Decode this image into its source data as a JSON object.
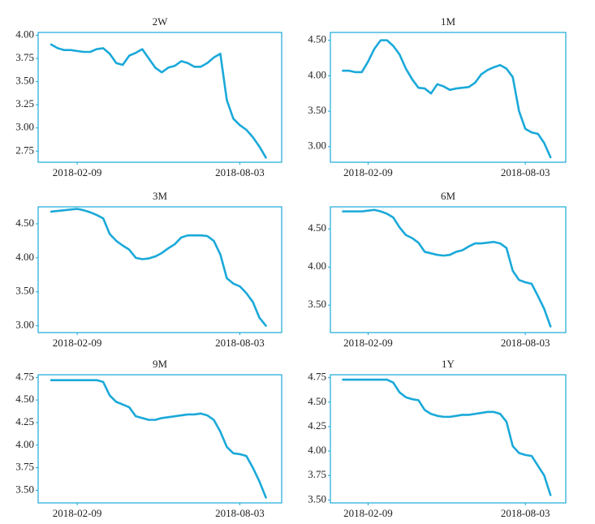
{
  "chart_data": [
    {
      "type": "line",
      "title": "2W",
      "color": "#1aa9d9",
      "x": [
        "2018-01-12",
        "2018-01-19",
        "2018-01-26",
        "2018-02-02",
        "2018-02-09",
        "2018-02-16",
        "2018-02-23",
        "2018-03-02",
        "2018-03-09",
        "2018-03-16",
        "2018-03-23",
        "2018-03-30",
        "2018-04-06",
        "2018-04-13",
        "2018-04-20",
        "2018-04-27",
        "2018-05-04",
        "2018-05-11",
        "2018-05-18",
        "2018-05-25",
        "2018-06-01",
        "2018-06-08",
        "2018-06-15",
        "2018-06-22",
        "2018-06-29",
        "2018-07-06",
        "2018-07-13",
        "2018-07-20",
        "2018-07-27",
        "2018-08-03",
        "2018-08-10",
        "2018-08-17",
        "2018-08-24",
        "2018-08-31"
      ],
      "values": [
        3.9,
        3.86,
        3.84,
        3.84,
        3.83,
        3.82,
        3.82,
        3.85,
        3.86,
        3.8,
        3.7,
        3.68,
        3.78,
        3.81,
        3.85,
        3.75,
        3.65,
        3.6,
        3.65,
        3.67,
        3.72,
        3.7,
        3.66,
        3.66,
        3.7,
        3.76,
        3.8,
        3.3,
        3.1,
        3.03,
        2.98,
        2.9,
        2.8,
        2.68
      ],
      "xlim": [
        "2017-12-29",
        "2018-09-17"
      ],
      "xticks": [
        "2018-02-09",
        "2018-08-03"
      ],
      "ylim": [
        2.63,
        4.03
      ],
      "yticks": [
        {
          "value": 2.75,
          "label": "2.75"
        },
        {
          "value": 3,
          "label": "3.00"
        },
        {
          "value": 3.25,
          "label": "3.25"
        },
        {
          "value": 3.5,
          "label": "3.50"
        },
        {
          "value": 3.75,
          "label": "3.75"
        },
        {
          "value": 4,
          "label": "4.00"
        }
      ]
    },
    {
      "type": "line",
      "title": "1M",
      "color": "#1aa9d9",
      "x": [
        "2018-01-12",
        "2018-01-19",
        "2018-01-26",
        "2018-02-02",
        "2018-02-09",
        "2018-02-16",
        "2018-02-23",
        "2018-03-02",
        "2018-03-09",
        "2018-03-16",
        "2018-03-23",
        "2018-03-30",
        "2018-04-06",
        "2018-04-13",
        "2018-04-20",
        "2018-04-27",
        "2018-05-04",
        "2018-05-11",
        "2018-05-18",
        "2018-05-25",
        "2018-06-01",
        "2018-06-08",
        "2018-06-15",
        "2018-06-22",
        "2018-06-29",
        "2018-07-06",
        "2018-07-13",
        "2018-07-20",
        "2018-07-27",
        "2018-08-03",
        "2018-08-10",
        "2018-08-17",
        "2018-08-24",
        "2018-08-31"
      ],
      "values": [
        4.07,
        4.07,
        4.05,
        4.05,
        4.2,
        4.38,
        4.5,
        4.5,
        4.42,
        4.3,
        4.1,
        3.95,
        3.83,
        3.82,
        3.75,
        3.88,
        3.85,
        3.8,
        3.82,
        3.83,
        3.84,
        3.9,
        4.02,
        4.08,
        4.12,
        4.15,
        4.1,
        3.98,
        3.5,
        3.25,
        3.2,
        3.18,
        3.05,
        2.85
      ],
      "xlim": [
        "2017-12-29",
        "2018-09-17"
      ],
      "xticks": [
        "2018-02-09",
        "2018-08-03"
      ],
      "ylim": [
        2.78,
        4.61
      ],
      "yticks": [
        {
          "value": 3,
          "label": "3.00"
        },
        {
          "value": 3.5,
          "label": "3.50"
        },
        {
          "value": 4,
          "label": "4.00"
        },
        {
          "value": 4.5,
          "label": "4.50"
        }
      ]
    },
    {
      "type": "line",
      "title": "3M",
      "color": "#1aa9d9",
      "x": [
        "2018-01-12",
        "2018-01-19",
        "2018-01-26",
        "2018-02-02",
        "2018-02-09",
        "2018-02-16",
        "2018-02-23",
        "2018-03-02",
        "2018-03-09",
        "2018-03-16",
        "2018-03-23",
        "2018-03-30",
        "2018-04-06",
        "2018-04-13",
        "2018-04-20",
        "2018-04-27",
        "2018-05-04",
        "2018-05-11",
        "2018-05-18",
        "2018-05-25",
        "2018-06-01",
        "2018-06-08",
        "2018-06-15",
        "2018-06-22",
        "2018-06-29",
        "2018-07-06",
        "2018-07-13",
        "2018-07-20",
        "2018-07-27",
        "2018-08-03",
        "2018-08-10",
        "2018-08-17",
        "2018-08-24",
        "2018-08-31"
      ],
      "values": [
        4.68,
        4.69,
        4.7,
        4.71,
        4.72,
        4.7,
        4.67,
        4.63,
        4.58,
        4.35,
        4.25,
        4.18,
        4.12,
        4.0,
        3.98,
        3.99,
        4.02,
        4.07,
        4.14,
        4.2,
        4.3,
        4.33,
        4.33,
        4.33,
        4.32,
        4.25,
        4.05,
        3.7,
        3.62,
        3.58,
        3.48,
        3.35,
        3.12,
        3.0
      ],
      "xlim": [
        "2017-12-29",
        "2018-09-17"
      ],
      "xticks": [
        "2018-02-09",
        "2018-08-03"
      ],
      "ylim": [
        2.9,
        4.75
      ],
      "yticks": [
        {
          "value": 3,
          "label": "3.00"
        },
        {
          "value": 3.5,
          "label": "3.50"
        },
        {
          "value": 4,
          "label": "4.00"
        },
        {
          "value": 4.5,
          "label": "4.50"
        }
      ]
    },
    {
      "type": "line",
      "title": "6M",
      "color": "#1aa9d9",
      "x": [
        "2018-01-12",
        "2018-01-19",
        "2018-01-26",
        "2018-02-02",
        "2018-02-09",
        "2018-02-16",
        "2018-02-23",
        "2018-03-02",
        "2018-03-09",
        "2018-03-16",
        "2018-03-23",
        "2018-03-30",
        "2018-04-06",
        "2018-04-13",
        "2018-04-20",
        "2018-04-27",
        "2018-05-04",
        "2018-05-11",
        "2018-05-18",
        "2018-05-25",
        "2018-06-01",
        "2018-06-08",
        "2018-06-15",
        "2018-06-22",
        "2018-06-29",
        "2018-07-06",
        "2018-07-13",
        "2018-07-20",
        "2018-07-27",
        "2018-08-03",
        "2018-08-10",
        "2018-08-17",
        "2018-08-24",
        "2018-08-31"
      ],
      "values": [
        4.73,
        4.73,
        4.73,
        4.73,
        4.74,
        4.75,
        4.73,
        4.7,
        4.65,
        4.52,
        4.42,
        4.38,
        4.32,
        4.2,
        4.18,
        4.16,
        4.15,
        4.16,
        4.2,
        4.22,
        4.27,
        4.31,
        4.31,
        4.32,
        4.33,
        4.31,
        4.25,
        3.95,
        3.83,
        3.8,
        3.78,
        3.62,
        3.45,
        3.22
      ],
      "xlim": [
        "2017-12-29",
        "2018-09-17"
      ],
      "xticks": [
        "2018-02-09",
        "2018-08-03"
      ],
      "ylim": [
        3.14,
        4.79
      ],
      "yticks": [
        {
          "value": 3.5,
          "label": "3.50"
        },
        {
          "value": 4,
          "label": "4.00"
        },
        {
          "value": 4.5,
          "label": "4.50"
        }
      ]
    },
    {
      "type": "line",
      "title": "9M",
      "color": "#1aa9d9",
      "x": [
        "2018-01-12",
        "2018-01-19",
        "2018-01-26",
        "2018-02-02",
        "2018-02-09",
        "2018-02-16",
        "2018-02-23",
        "2018-03-02",
        "2018-03-09",
        "2018-03-16",
        "2018-03-23",
        "2018-03-30",
        "2018-04-06",
        "2018-04-13",
        "2018-04-20",
        "2018-04-27",
        "2018-05-04",
        "2018-05-11",
        "2018-05-18",
        "2018-05-25",
        "2018-06-01",
        "2018-06-08",
        "2018-06-15",
        "2018-06-22",
        "2018-06-29",
        "2018-07-06",
        "2018-07-13",
        "2018-07-20",
        "2018-07-27",
        "2018-08-03",
        "2018-08-10",
        "2018-08-17",
        "2018-08-24",
        "2018-08-31"
      ],
      "values": [
        4.72,
        4.72,
        4.72,
        4.72,
        4.72,
        4.72,
        4.72,
        4.72,
        4.7,
        4.55,
        4.48,
        4.45,
        4.42,
        4.32,
        4.3,
        4.28,
        4.28,
        4.3,
        4.31,
        4.32,
        4.33,
        4.34,
        4.34,
        4.35,
        4.33,
        4.28,
        4.15,
        3.98,
        3.91,
        3.9,
        3.88,
        3.75,
        3.6,
        3.42
      ],
      "xlim": [
        "2017-12-29",
        "2018-09-17"
      ],
      "xticks": [
        "2018-02-09",
        "2018-08-03"
      ],
      "ylim": [
        3.36,
        4.78
      ],
      "yticks": [
        {
          "value": 3.5,
          "label": "3.50"
        },
        {
          "value": 3.75,
          "label": "3.75"
        },
        {
          "value": 4,
          "label": "4.00"
        },
        {
          "value": 4.25,
          "label": "4.25"
        },
        {
          "value": 4.5,
          "label": "4.50"
        },
        {
          "value": 4.75,
          "label": "4.75"
        }
      ]
    },
    {
      "type": "line",
      "title": "1Y",
      "color": "#1aa9d9",
      "x": [
        "2018-01-12",
        "2018-01-19",
        "2018-01-26",
        "2018-02-02",
        "2018-02-09",
        "2018-02-16",
        "2018-02-23",
        "2018-03-02",
        "2018-03-09",
        "2018-03-16",
        "2018-03-23",
        "2018-03-30",
        "2018-04-06",
        "2018-04-13",
        "2018-04-20",
        "2018-04-27",
        "2018-05-04",
        "2018-05-11",
        "2018-05-18",
        "2018-05-25",
        "2018-06-01",
        "2018-06-08",
        "2018-06-15",
        "2018-06-22",
        "2018-06-29",
        "2018-07-06",
        "2018-07-13",
        "2018-07-20",
        "2018-07-27",
        "2018-08-03",
        "2018-08-10",
        "2018-08-17",
        "2018-08-24",
        "2018-08-31"
      ],
      "values": [
        4.73,
        4.73,
        4.73,
        4.73,
        4.73,
        4.73,
        4.73,
        4.73,
        4.7,
        4.6,
        4.55,
        4.53,
        4.52,
        4.42,
        4.38,
        4.36,
        4.35,
        4.35,
        4.36,
        4.37,
        4.37,
        4.38,
        4.39,
        4.4,
        4.4,
        4.38,
        4.3,
        4.05,
        3.98,
        3.96,
        3.95,
        3.85,
        3.75,
        3.55
      ],
      "xlim": [
        "2017-12-29",
        "2018-09-17"
      ],
      "xticks": [
        "2018-02-09",
        "2018-08-03"
      ],
      "ylim": [
        3.47,
        4.78
      ],
      "yticks": [
        {
          "value": 3.5,
          "label": "3.50"
        },
        {
          "value": 3.75,
          "label": "3.75"
        },
        {
          "value": 4,
          "label": "4.00"
        },
        {
          "value": 4.25,
          "label": "4.25"
        },
        {
          "value": 4.5,
          "label": "4.50"
        },
        {
          "value": 4.75,
          "label": "4.75"
        }
      ]
    }
  ]
}
